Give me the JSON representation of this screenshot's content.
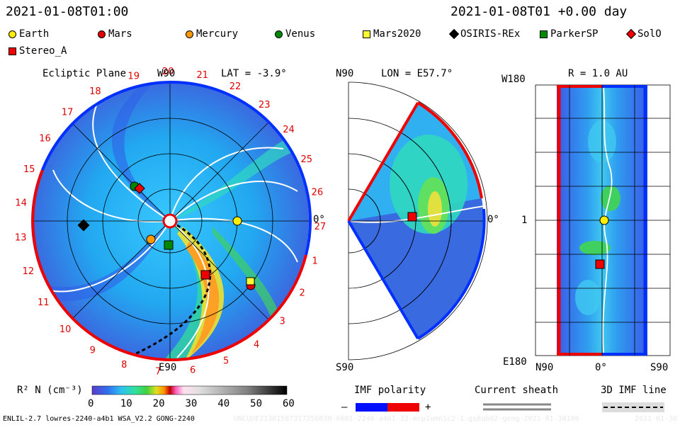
{
  "header": {
    "datetime": "2021-01-08T01:00",
    "forecast": "2021-01-08T01 +0.00 day"
  },
  "legend": [
    {
      "name": "Earth",
      "shape": "circle",
      "color": "#ffee00"
    },
    {
      "name": "Mars",
      "shape": "circle",
      "color": "#e00000"
    },
    {
      "name": "Mercury",
      "shape": "circle",
      "color": "#ff9900"
    },
    {
      "name": "Venus",
      "shape": "circle",
      "color": "#008800"
    },
    {
      "name": "Mars2020",
      "shape": "square",
      "color": "#ffff33"
    },
    {
      "name": "OSIRIS-REx",
      "shape": "diamond",
      "color": "#000000"
    },
    {
      "name": "ParkerSP",
      "shape": "square",
      "color": "#008800"
    },
    {
      "name": "SolO",
      "shape": "diamond",
      "color": "#ee0000"
    },
    {
      "name": "Stereo_A",
      "shape": "square",
      "color": "#ee0000"
    }
  ],
  "panel_ecliptic": {
    "title": "Ecliptic Plane",
    "top_label": "W90",
    "lat": "LAT = -3.9°",
    "bottom_label": "E90",
    "right_label": "0°",
    "carrington_days": [
      "19",
      "20",
      "21",
      "22",
      "23",
      "24",
      "25",
      "26",
      "27",
      "1",
      "2",
      "3",
      "4",
      "5",
      "6",
      "7",
      "8",
      "9",
      "10",
      "11",
      "12",
      "13",
      "14",
      "15",
      "16",
      "17",
      "18"
    ]
  },
  "panel_meridional": {
    "top_label": "N90",
    "lon": "LON = E57.7°",
    "bottom_label": "S90",
    "right_label": "0°"
  },
  "panel_radial": {
    "r_label": "R = 1.0 AU",
    "top_left": "W180",
    "mid_left": "1",
    "bottom_left": "E180",
    "bottom_n": "N90",
    "bottom_mid": "0°",
    "bottom_s": "S90"
  },
  "colorbar": {
    "label": "R² N (cm⁻³)",
    "ticks": [
      "0",
      "10",
      "20",
      "30",
      "40",
      "50",
      "60"
    ]
  },
  "imf": {
    "title": "IMF polarity",
    "minus": "–",
    "plus": "+",
    "current_sheath": "Current sheath",
    "imf_line": "3D IMF line"
  },
  "footer": {
    "left": "ENLIL-2.7 lowres-2240-a4b1 WSA_V2.2 GONG-2240",
    "mid": "UNCUDE21301587317256030-6001-2240-a4b1-32-mcp1umn1c2-1.gs8qb02-gong-2021-01-30100",
    "right": "2021-01-30"
  }
}
